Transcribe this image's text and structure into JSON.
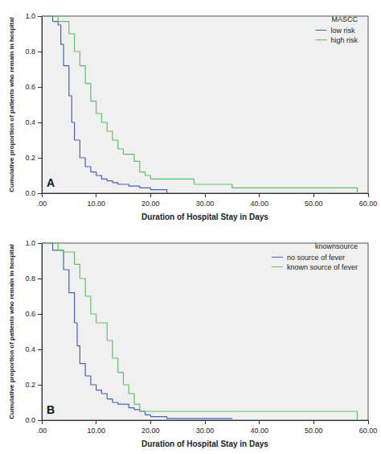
{
  "chart_data": [
    {
      "type": "step",
      "annotation": "A",
      "x_label": "Duration of Hospital Stay in Days",
      "y_label": "Cumulative proportion of patients who remain in hospital",
      "legend_title": "MASCC",
      "legend": "top-right",
      "grid": false,
      "xlim": [
        0,
        60
      ],
      "xticks": [
        {
          "value": 0,
          "label": ".00"
        },
        {
          "value": 10,
          "label": "10.00"
        },
        {
          "value": 20,
          "label": "20.00"
        },
        {
          "value": 30,
          "label": "30.00"
        },
        {
          "value": 40,
          "label": "40.00"
        },
        {
          "value": 50,
          "label": "50.00"
        },
        {
          "value": 60,
          "label": "60.00"
        }
      ],
      "ylim": [
        0,
        1
      ],
      "yticks": [
        {
          "value": 0,
          "label": "0.0"
        },
        0.2,
        0.4,
        0.6,
        0.8,
        {
          "value": 1,
          "label": "1.0"
        }
      ],
      "series": [
        {
          "name": "low risk",
          "color": "#4a5fc1",
          "x": [
            0,
            2,
            3,
            3.5,
            4,
            5,
            5.5,
            6,
            7,
            8,
            9,
            10,
            11,
            12,
            13,
            14,
            16,
            18,
            20,
            23
          ],
          "values": [
            1.0,
            0.97,
            0.95,
            0.84,
            0.72,
            0.55,
            0.4,
            0.3,
            0.2,
            0.15,
            0.12,
            0.1,
            0.08,
            0.07,
            0.06,
            0.05,
            0.04,
            0.03,
            0.02,
            0.0
          ]
        },
        {
          "name": "high risk",
          "color": "#5cc266",
          "x": [
            0,
            3,
            5,
            6,
            7,
            8,
            9,
            10,
            11,
            12,
            13,
            14,
            15,
            17,
            18,
            19,
            20,
            28,
            35,
            58
          ],
          "values": [
            1.0,
            0.97,
            0.9,
            0.8,
            0.72,
            0.62,
            0.52,
            0.45,
            0.4,
            0.35,
            0.3,
            0.25,
            0.22,
            0.18,
            0.12,
            0.1,
            0.08,
            0.05,
            0.03,
            0.0
          ]
        }
      ]
    },
    {
      "type": "step",
      "annotation": "B",
      "x_label": "Duration of Hospital Stay in Days",
      "y_label": "Cumulative proportion of patients who remain in hospital",
      "legend_title": "knownsource",
      "legend": "top-right",
      "grid": false,
      "xlim": [
        0,
        60
      ],
      "xticks": [
        {
          "value": 0,
          "label": ".00"
        },
        {
          "value": 10,
          "label": "10.00"
        },
        {
          "value": 20,
          "label": "20.00"
        },
        {
          "value": 30,
          "label": "30.00"
        },
        {
          "value": 40,
          "label": "40.00"
        },
        {
          "value": 50,
          "label": "50.00"
        },
        {
          "value": 60,
          "label": "60.00"
        }
      ],
      "ylim": [
        0,
        1
      ],
      "yticks": [
        {
          "value": 0,
          "label": "0.0"
        },
        0.2,
        0.4,
        0.6,
        0.8,
        {
          "value": 1,
          "label": "1.0"
        }
      ],
      "series": [
        {
          "name": "no source of fever",
          "color": "#4a5fc1",
          "x": [
            0,
            2,
            3,
            4,
            5,
            6,
            6.5,
            7,
            8,
            9,
            10,
            11,
            12,
            13,
            14,
            16,
            17,
            18,
            19,
            20,
            23,
            35
          ],
          "values": [
            1.0,
            0.96,
            0.96,
            0.85,
            0.72,
            0.55,
            0.42,
            0.32,
            0.25,
            0.2,
            0.17,
            0.15,
            0.12,
            0.1,
            0.09,
            0.07,
            0.06,
            0.05,
            0.03,
            0.02,
            0.01,
            0.01
          ]
        },
        {
          "name": "known source of fever",
          "color": "#5cc266",
          "x": [
            0,
            3,
            4,
            6,
            7,
            8,
            9,
            10,
            12,
            13,
            14,
            15,
            16,
            17,
            18,
            28,
            58
          ],
          "values": [
            1.0,
            0.96,
            0.95,
            0.88,
            0.8,
            0.7,
            0.6,
            0.55,
            0.45,
            0.35,
            0.27,
            0.2,
            0.15,
            0.09,
            0.05,
            0.05,
            0.0
          ]
        }
      ]
    }
  ]
}
